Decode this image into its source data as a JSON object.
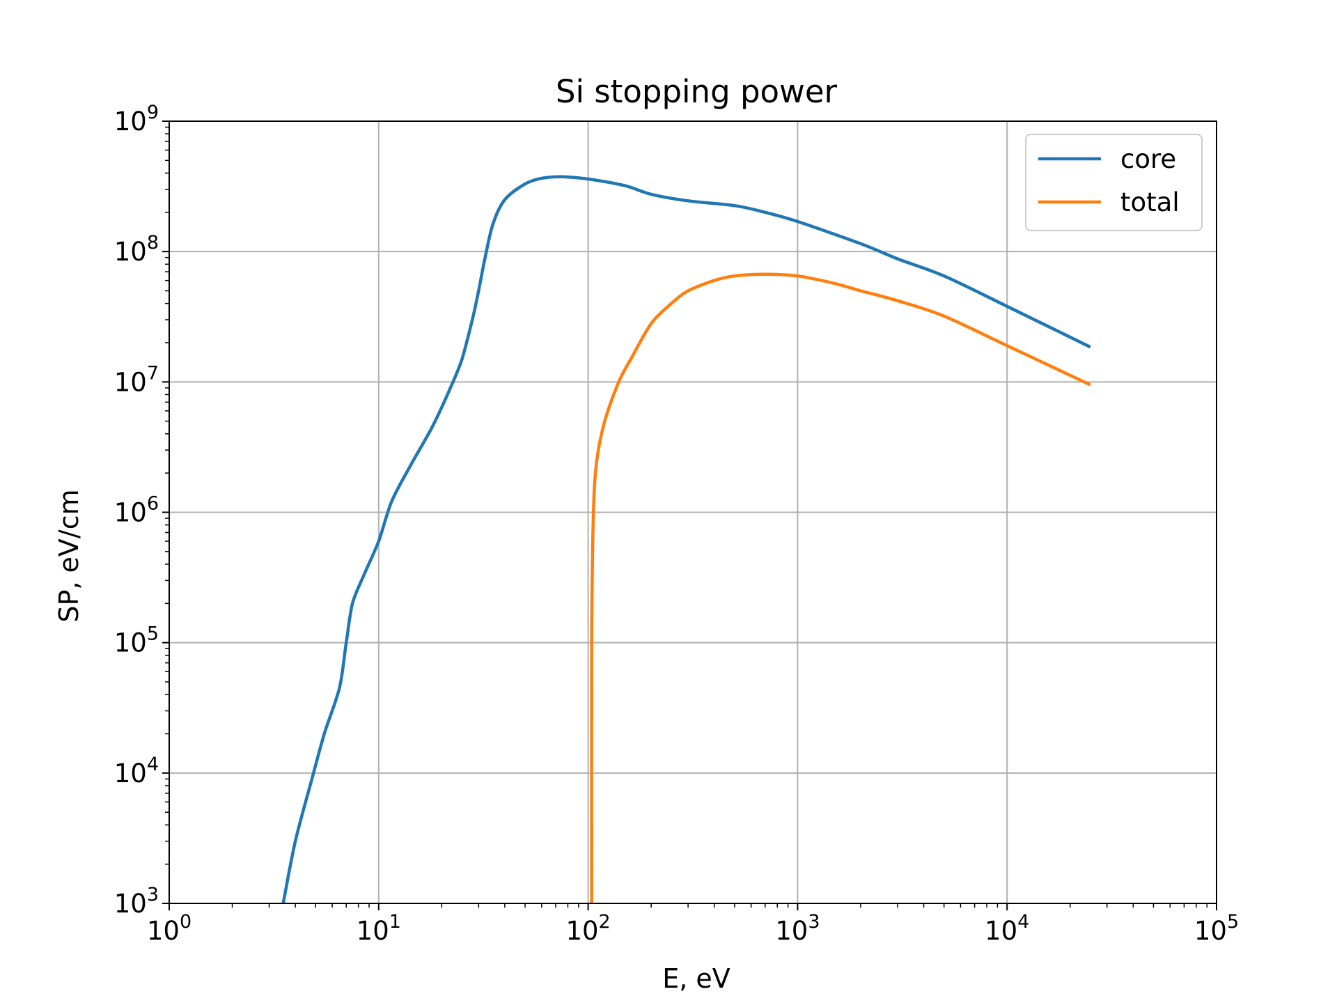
{
  "chart_data": {
    "type": "line",
    "title": "Si stopping power",
    "xlabel": "E, eV",
    "ylabel": "SP, eV/cm",
    "xscale": "log",
    "yscale": "log",
    "xlim": [
      1,
      100000
    ],
    "ylim": [
      1000,
      1000000000
    ],
    "grid": true,
    "legend_position": "top-right",
    "x_tick_labels": [
      {
        "base": "10",
        "exp": "0"
      },
      {
        "base": "10",
        "exp": "1"
      },
      {
        "base": "10",
        "exp": "2"
      },
      {
        "base": "10",
        "exp": "3"
      },
      {
        "base": "10",
        "exp": "4"
      },
      {
        "base": "10",
        "exp": "5"
      }
    ],
    "y_tick_labels": [
      {
        "base": "10",
        "exp": "3"
      },
      {
        "base": "10",
        "exp": "4"
      },
      {
        "base": "10",
        "exp": "5"
      },
      {
        "base": "10",
        "exp": "6"
      },
      {
        "base": "10",
        "exp": "7"
      },
      {
        "base": "10",
        "exp": "8"
      },
      {
        "base": "10",
        "exp": "9"
      }
    ],
    "series": [
      {
        "name": "core",
        "color": "#1f77b4",
        "points": [
          [
            3.5,
            1000
          ],
          [
            4.0,
            3000
          ],
          [
            4.8,
            9000
          ],
          [
            5.5,
            20000
          ],
          [
            6.5,
            45000
          ],
          [
            7.0,
            100000
          ],
          [
            7.5,
            200000
          ],
          [
            8.5,
            330000
          ],
          [
            10,
            600000
          ],
          [
            11.5,
            1200000
          ],
          [
            14,
            2200000
          ],
          [
            18,
            4500000
          ],
          [
            22,
            9000000
          ],
          [
            25,
            15000000
          ],
          [
            28,
            30000000
          ],
          [
            30,
            50000000
          ],
          [
            32,
            85000000
          ],
          [
            35,
            160000000
          ],
          [
            40,
            250000000
          ],
          [
            50,
            330000000
          ],
          [
            60,
            365000000
          ],
          [
            75,
            375000000
          ],
          [
            100,
            360000000
          ],
          [
            150,
            320000000
          ],
          [
            200,
            275000000
          ],
          [
            300,
            245000000
          ],
          [
            500,
            225000000
          ],
          [
            700,
            200000000
          ],
          [
            1000,
            170000000
          ],
          [
            2000,
            115000000
          ],
          [
            3000,
            88000000
          ],
          [
            5000,
            65000000
          ],
          [
            10000,
            38000000
          ],
          [
            25000,
            18500000
          ]
        ]
      },
      {
        "name": "total",
        "color": "#ff7f0e",
        "points": [
          [
            104,
            1000
          ],
          [
            104,
            100000
          ],
          [
            106,
            1000000
          ],
          [
            110,
            2500000
          ],
          [
            120,
            5000000
          ],
          [
            140,
            10000000
          ],
          [
            160,
            15000000
          ],
          [
            200,
            28000000
          ],
          [
            250,
            40000000
          ],
          [
            300,
            50000000
          ],
          [
            400,
            60000000
          ],
          [
            500,
            65000000
          ],
          [
            700,
            67000000
          ],
          [
            1000,
            65000000
          ],
          [
            1500,
            57000000
          ],
          [
            2000,
            50000000
          ],
          [
            3000,
            42000000
          ],
          [
            5000,
            32000000
          ],
          [
            10000,
            19000000
          ],
          [
            25000,
            9500000
          ]
        ]
      }
    ]
  }
}
